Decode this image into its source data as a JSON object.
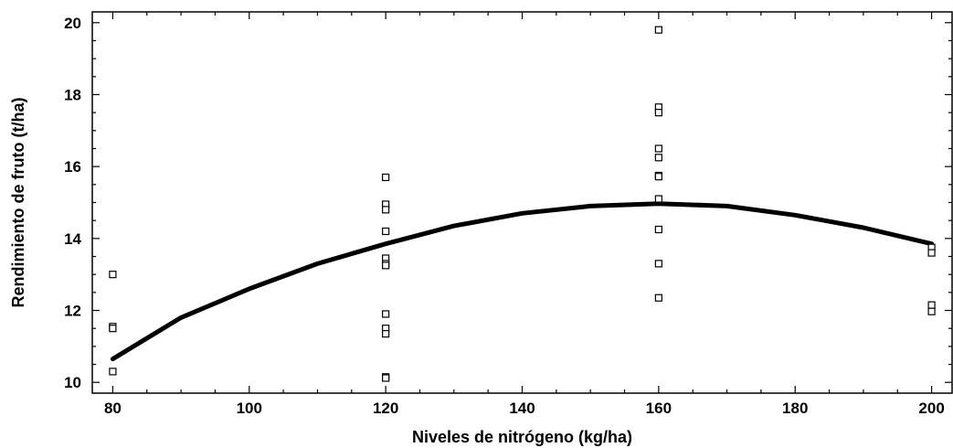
{
  "chart_data": {
    "type": "scatter",
    "xlabel": "Niveles de nitrógeno (kg/ha)",
    "ylabel": "Rendimiento de fruto (t/ha)",
    "xlim": [
      77,
      203
    ],
    "ylim": [
      9.7,
      20.3
    ],
    "x_ticks": [
      80,
      100,
      120,
      140,
      160,
      180,
      200
    ],
    "y_ticks": [
      10,
      12,
      14,
      16,
      18,
      20
    ],
    "grid": false,
    "series": [
      {
        "kind": "points",
        "marker": "open-square",
        "points": [
          {
            "x": 80,
            "y": 13.0
          },
          {
            "x": 80,
            "y": 11.55
          },
          {
            "x": 80,
            "y": 11.5
          },
          {
            "x": 80,
            "y": 10.3
          },
          {
            "x": 120,
            "y": 15.7
          },
          {
            "x": 120,
            "y": 14.95
          },
          {
            "x": 120,
            "y": 14.8
          },
          {
            "x": 120,
            "y": 14.2
          },
          {
            "x": 120,
            "y": 13.45
          },
          {
            "x": 120,
            "y": 13.3
          },
          {
            "x": 120,
            "y": 13.25
          },
          {
            "x": 120,
            "y": 11.9
          },
          {
            "x": 120,
            "y": 11.5
          },
          {
            "x": 120,
            "y": 11.35
          },
          {
            "x": 120,
            "y": 10.15
          },
          {
            "x": 120,
            "y": 10.12
          },
          {
            "x": 160,
            "y": 19.8
          },
          {
            "x": 160,
            "y": 17.65
          },
          {
            "x": 160,
            "y": 17.5
          },
          {
            "x": 160,
            "y": 16.5
          },
          {
            "x": 160,
            "y": 16.25
          },
          {
            "x": 160,
            "y": 15.75
          },
          {
            "x": 160,
            "y": 15.72
          },
          {
            "x": 160,
            "y": 15.1
          },
          {
            "x": 160,
            "y": 14.25
          },
          {
            "x": 160,
            "y": 13.3
          },
          {
            "x": 160,
            "y": 12.35
          },
          {
            "x": 200,
            "y": 13.75
          },
          {
            "x": 200,
            "y": 13.6
          },
          {
            "x": 200,
            "y": 12.15
          },
          {
            "x": 200,
            "y": 11.97
          }
        ]
      },
      {
        "kind": "fitted-curve",
        "model": "quadratic",
        "x": [
          80,
          90,
          100,
          110,
          120,
          130,
          140,
          150,
          160,
          170,
          180,
          190,
          200
        ],
        "y": [
          10.65,
          11.8,
          12.6,
          13.3,
          13.85,
          14.35,
          14.7,
          14.9,
          14.97,
          14.9,
          14.65,
          14.3,
          13.85
        ]
      }
    ]
  }
}
